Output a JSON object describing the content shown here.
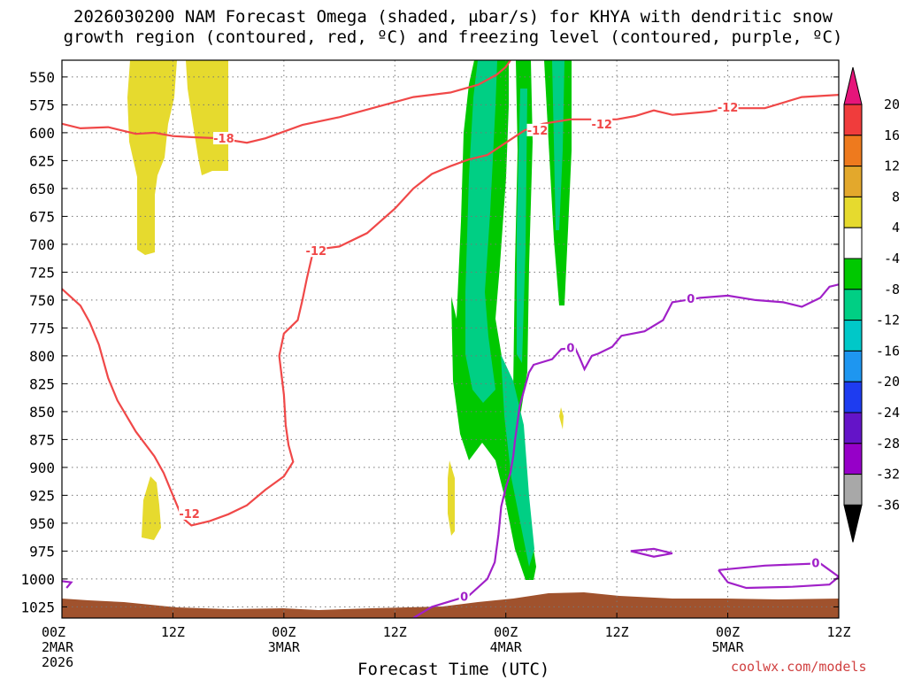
{
  "title": {
    "line1": "2026030200 NAM Forecast Omega (shaded, μbar/s) for KHYA with dendritic snow",
    "line2": "growth region (contoured, red, ºC) and freezing level (contoured, purple, ºC)"
  },
  "credit": "coolwx.com/models",
  "chart_data": {
    "type": "time-height cross section",
    "title": "2026030200 NAM Forecast Omega (shaded, μbar/s) for KHYA with dendritic snow growth region (contoured, red, ºC) and freezing level (contoured, purple, ºC)",
    "xlabel": "Forecast Time (UTC)",
    "ylabel": "",
    "y_ticks": [
      "550",
      "575",
      "600",
      "625",
      "650",
      "675",
      "700",
      "725",
      "750",
      "775",
      "800",
      "825",
      "850",
      "875",
      "900",
      "925",
      "950",
      "975",
      "1000",
      "1025"
    ],
    "y_range": [
      1035,
      535
    ],
    "x_ticks": [
      {
        "hour": 0,
        "line1": "00Z",
        "line2": "2MAR",
        "line3": "2026"
      },
      {
        "hour": 12,
        "line1": "12Z",
        "line2": "",
        "line3": ""
      },
      {
        "hour": 24,
        "line1": "00Z",
        "line2": "3MAR",
        "line3": ""
      },
      {
        "hour": 36,
        "line1": "12Z",
        "line2": "",
        "line3": ""
      },
      {
        "hour": 48,
        "line1": "00Z",
        "line2": "4MAR",
        "line3": ""
      },
      {
        "hour": 60,
        "line1": "12Z",
        "line2": "",
        "line3": ""
      },
      {
        "hour": 72,
        "line1": "00Z",
        "line2": "5MAR",
        "line3": ""
      },
      {
        "hour": 84,
        "line1": "12Z",
        "line2": "",
        "line3": ""
      }
    ],
    "x_range": [
      0,
      84
    ],
    "grid": true,
    "colorbar": {
      "levels": [
        "20",
        "16",
        "12",
        "8",
        "4",
        "-4",
        "-8",
        "-12",
        "-16",
        "-20",
        "-24",
        "-28",
        "-32",
        "-36"
      ],
      "colors": [
        "#f03c3c",
        "#ee7a1e",
        "#e3a82c",
        "#e6da2e",
        "#ffffff",
        "#00c800",
        "#00cf84",
        "#00c8c8",
        "#1e96f0",
        "#1e3cf0",
        "#6414c8",
        "#9600c8",
        "#a8a8a8"
      ],
      "top_arrow": "#e6157a",
      "bottom_arrow": "#000000"
    },
    "contour_labels": {
      "red": [
        "-18",
        "-12",
        "-12",
        "-12",
        "-12",
        "-12"
      ],
      "purple": [
        "0",
        "0",
        "0",
        "0"
      ]
    },
    "series": [
      {
        "name": "dendritic snow growth region",
        "color": "#f04848",
        "lines": [
          {
            "label": "-18",
            "points": [
              [
                0,
                592
              ],
              [
                2,
                596
              ],
              [
                5,
                595
              ],
              [
                8,
                601
              ],
              [
                10,
                600
              ],
              [
                12,
                603
              ],
              [
                14,
                604
              ],
              [
                17,
                605
              ],
              [
                20,
                609
              ],
              [
                22,
                605
              ],
              [
                26,
                593
              ],
              [
                30,
                586
              ],
              [
                34,
                577
              ],
              [
                38,
                568
              ],
              [
                42,
                564
              ],
              [
                45,
                557
              ],
              [
                47,
                548
              ],
              [
                48,
                541
              ],
              [
                48.5,
                535
              ]
            ]
          },
          {
            "label": "-12",
            "points": [
              [
                0,
                740
              ],
              [
                2,
                755
              ],
              [
                3,
                770
              ],
              [
                4,
                790
              ],
              [
                5,
                820
              ],
              [
                6,
                840
              ],
              [
                8,
                868
              ],
              [
                10,
                890
              ],
              [
                11,
                905
              ],
              [
                12,
                925
              ],
              [
                13,
                945
              ],
              [
                14,
                952
              ],
              [
                16,
                948
              ],
              [
                18,
                942
              ],
              [
                20,
                934
              ],
              [
                22,
                920
              ],
              [
                24,
                908
              ],
              [
                25,
                895
              ],
              [
                24.5,
                880
              ],
              [
                24.2,
                862
              ],
              [
                24,
                835
              ],
              [
                23.5,
                800
              ],
              [
                24,
                780
              ],
              [
                25.5,
                768
              ],
              [
                26,
                750
              ],
              [
                26.5,
                730
              ],
              [
                27.2,
                705
              ],
              [
                30,
                702
              ],
              [
                33,
                690
              ],
              [
                36,
                668
              ],
              [
                38,
                650
              ],
              [
                40,
                637
              ],
              [
                42,
                630
              ],
              [
                44,
                624
              ],
              [
                46,
                620
              ],
              [
                48,
                609
              ],
              [
                50,
                598
              ],
              [
                52,
                592
              ],
              [
                55,
                588
              ],
              [
                60,
                588
              ],
              [
                62,
                585
              ],
              [
                64,
                580
              ],
              [
                66,
                584
              ],
              [
                70,
                581
              ],
              [
                72,
                578
              ],
              [
                76,
                578
              ],
              [
                80,
                568
              ],
              [
                84,
                566
              ]
            ]
          }
        ]
      },
      {
        "name": "freezing level",
        "color": "#a020c8",
        "lines": [
          {
            "label": "0",
            "points": [
              [
                0,
                1002
              ],
              [
                1,
                1003
              ],
              [
                0.5,
                1008
              ]
            ]
          },
          {
            "label": "0",
            "points": [
              [
                38,
                1035
              ],
              [
                40,
                1025
              ],
              [
                42,
                1020
              ],
              [
                44,
                1015
              ],
              [
                46,
                1000
              ],
              [
                46.8,
                985
              ],
              [
                47.2,
                960
              ],
              [
                47.5,
                935
              ],
              [
                48,
                918
              ],
              [
                48.5,
                905
              ],
              [
                48.8,
                890
              ],
              [
                49,
                875
              ],
              [
                49.5,
                845
              ],
              [
                50,
                830
              ],
              [
                50.5,
                815
              ],
              [
                51,
                808
              ],
              [
                53,
                803
              ],
              [
                54,
                794
              ],
              [
                55.5,
                793
              ],
              [
                56,
                802
              ],
              [
                56.5,
                812
              ],
              [
                57.3,
                800
              ],
              [
                58,
                798
              ],
              [
                59.5,
                792
              ],
              [
                60.5,
                782
              ],
              [
                63,
                778
              ],
              [
                65,
                768
              ],
              [
                66,
                752
              ],
              [
                69,
                748
              ],
              [
                72,
                746
              ],
              [
                75,
                750
              ],
              [
                78,
                752
              ],
              [
                80,
                756
              ],
              [
                82,
                748
              ],
              [
                83,
                738
              ],
              [
                84,
                736
              ]
            ]
          },
          {
            "label": "0",
            "points": [
              [
                61.5,
                975
              ],
              [
                64,
                973
              ],
              [
                66,
                977
              ],
              [
                64,
                980
              ],
              [
                61.5,
                975
              ]
            ]
          },
          {
            "label": "0",
            "points": [
              [
                71,
                992
              ],
              [
                76,
                988
              ],
              [
                82,
                986
              ],
              [
                84,
                998
              ],
              [
                83,
                1005
              ],
              [
                79,
                1007
              ],
              [
                74,
                1008
              ],
              [
                72,
                1003
              ],
              [
                71,
                992
              ]
            ]
          }
        ]
      }
    ]
  }
}
